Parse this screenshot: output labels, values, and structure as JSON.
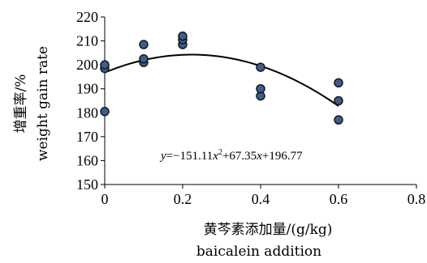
{
  "chart_data": {
    "type": "scatter",
    "x_axis": {
      "label_lines": [
        "黄芩素添加量/(g/kg)",
        "baicalein addition"
      ],
      "range": [
        0,
        0.8
      ],
      "ticks": [
        0,
        0.2,
        0.4,
        0.6,
        0.8
      ],
      "tick_labels": [
        "0",
        "0.2",
        "0.4",
        "0.6",
        "0.8"
      ]
    },
    "y_axis": {
      "label_lines": [
        "增重率/%",
        "weight gain rate"
      ],
      "range": [
        150,
        220
      ],
      "ticks": [
        150,
        160,
        170,
        180,
        190,
        200,
        210,
        220
      ],
      "tick_labels": [
        "150",
        "160",
        "170",
        "180",
        "190",
        "200",
        "210",
        "220"
      ]
    },
    "points": [
      {
        "x": 0,
        "y": 180.5
      },
      {
        "x": 0,
        "y": 198.5
      },
      {
        "x": 0,
        "y": 200
      },
      {
        "x": 0.1,
        "y": 201
      },
      {
        "x": 0.1,
        "y": 202.5
      },
      {
        "x": 0.1,
        "y": 208.5
      },
      {
        "x": 0.2,
        "y": 208.5
      },
      {
        "x": 0.2,
        "y": 210.5
      },
      {
        "x": 0.2,
        "y": 212
      },
      {
        "x": 0.4,
        "y": 187
      },
      {
        "x": 0.4,
        "y": 190
      },
      {
        "x": 0.4,
        "y": 199
      },
      {
        "x": 0.6,
        "y": 177
      },
      {
        "x": 0.6,
        "y": 185
      },
      {
        "x": 0.6,
        "y": 192.5
      }
    ],
    "trendline": {
      "type": "polynomial",
      "coefficients": {
        "a": -151.11,
        "b": 67.35,
        "c": 196.77
      },
      "x_range": [
        0,
        0.6
      ],
      "equation_label": {
        "y": "y",
        "eq": "=−151.11",
        "x1": "x",
        "sup": "2",
        "plus1": "+67.35",
        "x2": "x",
        "plus2": "+196.77"
      }
    },
    "marker_color": "#3f5d86",
    "marker_edge_color": "#111827",
    "line_color": "#000000",
    "grid": false,
    "legend": "none"
  }
}
